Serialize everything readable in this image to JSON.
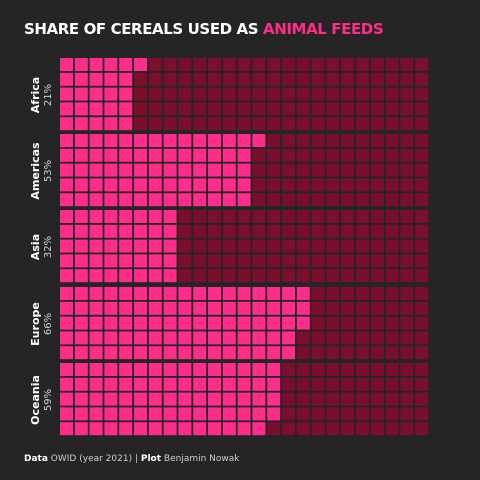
{
  "title": {
    "lead": "SHARE OF CEREALS USED AS",
    "accent": "ANIMAL FEEDS"
  },
  "caption": {
    "data_label": "Data",
    "data_text": "OWID (year 2021) |",
    "plot_label": "Plot",
    "plot_text": "Benjamin Nowak"
  },
  "colors": {
    "background": "#252525",
    "filled": "#ff2d8a",
    "empty": "#7a0f2d"
  },
  "chart_data": {
    "type": "waffle",
    "grid": {
      "rows": 5,
      "columns": 25
    },
    "fill_order": "column-wise, top to bottom",
    "categories": [
      "Africa",
      "Americas",
      "Asia",
      "Europe",
      "Oceania"
    ],
    "values": [
      21,
      53,
      32,
      66,
      59
    ],
    "value_labels": [
      "21%",
      "53%",
      "32%",
      "66%",
      "59%"
    ],
    "unit": "%",
    "ylim": [
      0,
      100
    ]
  }
}
